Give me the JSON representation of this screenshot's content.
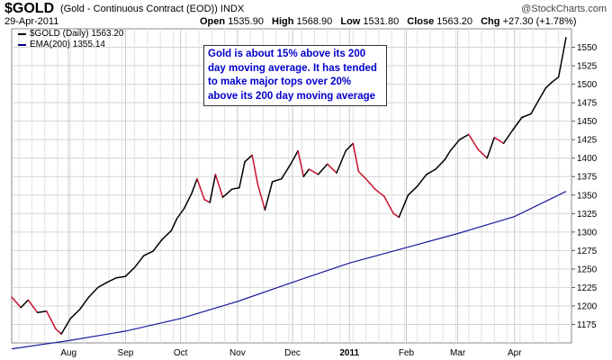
{
  "header": {
    "symbol": "$GOLD",
    "description": "(Gold - Continuous Contract (EOD))",
    "exchange": "INDX",
    "date": "29-Apr-2011",
    "watermark": "@StockCharts.com",
    "open_label": "Open",
    "open": "1535.90",
    "high_label": "High",
    "high": "1568.90",
    "low_label": "Low",
    "low": "1531.80",
    "close_label": "Close",
    "close": "1563.20",
    "chg_label": "Chg",
    "chg": "+27.30 (+1.78%)"
  },
  "legend": [
    {
      "label": "$GOLD (Daily) 1563.20",
      "color": "#000000"
    },
    {
      "label": "EMA(200) 1355.14",
      "color": "#00008b"
    }
  ],
  "annotation": "Gold is about 15% above its 200 day moving average.  It has tended to make major tops over 20% above its 200 day moving average",
  "colors": {
    "up": "#000000",
    "down": "#c8102e",
    "ema": "#1a1a9c",
    "grid": "#d4d4d4",
    "annotation_text": "#0000cc"
  },
  "chart_data": {
    "type": "line",
    "title": "$GOLD (Gold - Continuous Contract (EOD))",
    "ylim": [
      1150,
      1575
    ],
    "ytick_labels": [
      "1175",
      "1200",
      "1225",
      "1250",
      "1275",
      "1300",
      "1325",
      "1350",
      "1375",
      "1400",
      "1425",
      "1450",
      "1475",
      "1500",
      "1525",
      "1550"
    ],
    "x_labels": [
      "Aug",
      "Sep",
      "Oct",
      "Nov",
      "Dec",
      "2011",
      "Feb",
      "Mar",
      "Apr"
    ],
    "grid": true,
    "series": [
      {
        "name": "$GOLD (Daily)",
        "dates": [
          "2010-07-01",
          "2010-07-06",
          "2010-07-10",
          "2010-07-15",
          "2010-07-20",
          "2010-07-25",
          "2010-07-28",
          "2010-08-02",
          "2010-08-07",
          "2010-08-12",
          "2010-08-17",
          "2010-08-22",
          "2010-08-27",
          "2010-09-01",
          "2010-09-06",
          "2010-09-11",
          "2010-09-16",
          "2010-09-21",
          "2010-09-26",
          "2010-09-29",
          "2010-10-03",
          "2010-10-07",
          "2010-10-10",
          "2010-10-14",
          "2010-10-17",
          "2010-10-20",
          "2010-10-24",
          "2010-10-29",
          "2010-11-02",
          "2010-11-05",
          "2010-11-09",
          "2010-11-12",
          "2010-11-16",
          "2010-11-20",
          "2010-11-25",
          "2010-11-30",
          "2010-12-04",
          "2010-12-07",
          "2010-12-10",
          "2010-12-15",
          "2010-12-20",
          "2010-12-25",
          "2010-12-30",
          "2011-01-03",
          "2011-01-06",
          "2011-01-10",
          "2011-01-15",
          "2011-01-20",
          "2011-01-25",
          "2011-01-28",
          "2011-02-02",
          "2011-02-07",
          "2011-02-12",
          "2011-02-17",
          "2011-02-22",
          "2011-02-25",
          "2011-03-02",
          "2011-03-07",
          "2011-03-12",
          "2011-03-17",
          "2011-03-21",
          "2011-03-26",
          "2011-03-31",
          "2011-04-05",
          "2011-04-10",
          "2011-04-14",
          "2011-04-18",
          "2011-04-21",
          "2011-04-25",
          "2011-04-29"
        ],
        "values": [
          1212,
          1198,
          1208,
          1191,
          1193,
          1169,
          1162,
          1183,
          1195,
          1212,
          1225,
          1232,
          1238,
          1240,
          1252,
          1268,
          1274,
          1290,
          1302,
          1318,
          1332,
          1352,
          1372,
          1344,
          1340,
          1378,
          1347,
          1358,
          1360,
          1395,
          1404,
          1365,
          1330,
          1368,
          1372,
          1392,
          1410,
          1375,
          1385,
          1378,
          1392,
          1380,
          1410,
          1420,
          1382,
          1372,
          1358,
          1348,
          1325,
          1320,
          1350,
          1362,
          1378,
          1385,
          1398,
          1410,
          1425,
          1432,
          1412,
          1400,
          1428,
          1420,
          1438,
          1455,
          1460,
          1478,
          1495,
          1502,
          1510,
          1563
        ]
      },
      {
        "name": "EMA(200)",
        "dates": [
          "2010-07-01",
          "2010-08-01",
          "2010-09-01",
          "2010-10-01",
          "2010-11-01",
          "2010-12-01",
          "2011-01-01",
          "2011-02-01",
          "2011-03-01",
          "2011-04-01",
          "2011-04-29"
        ],
        "values": [
          1142,
          1153,
          1166,
          1183,
          1206,
          1232,
          1258,
          1279,
          1298,
          1321,
          1355
        ]
      }
    ]
  }
}
